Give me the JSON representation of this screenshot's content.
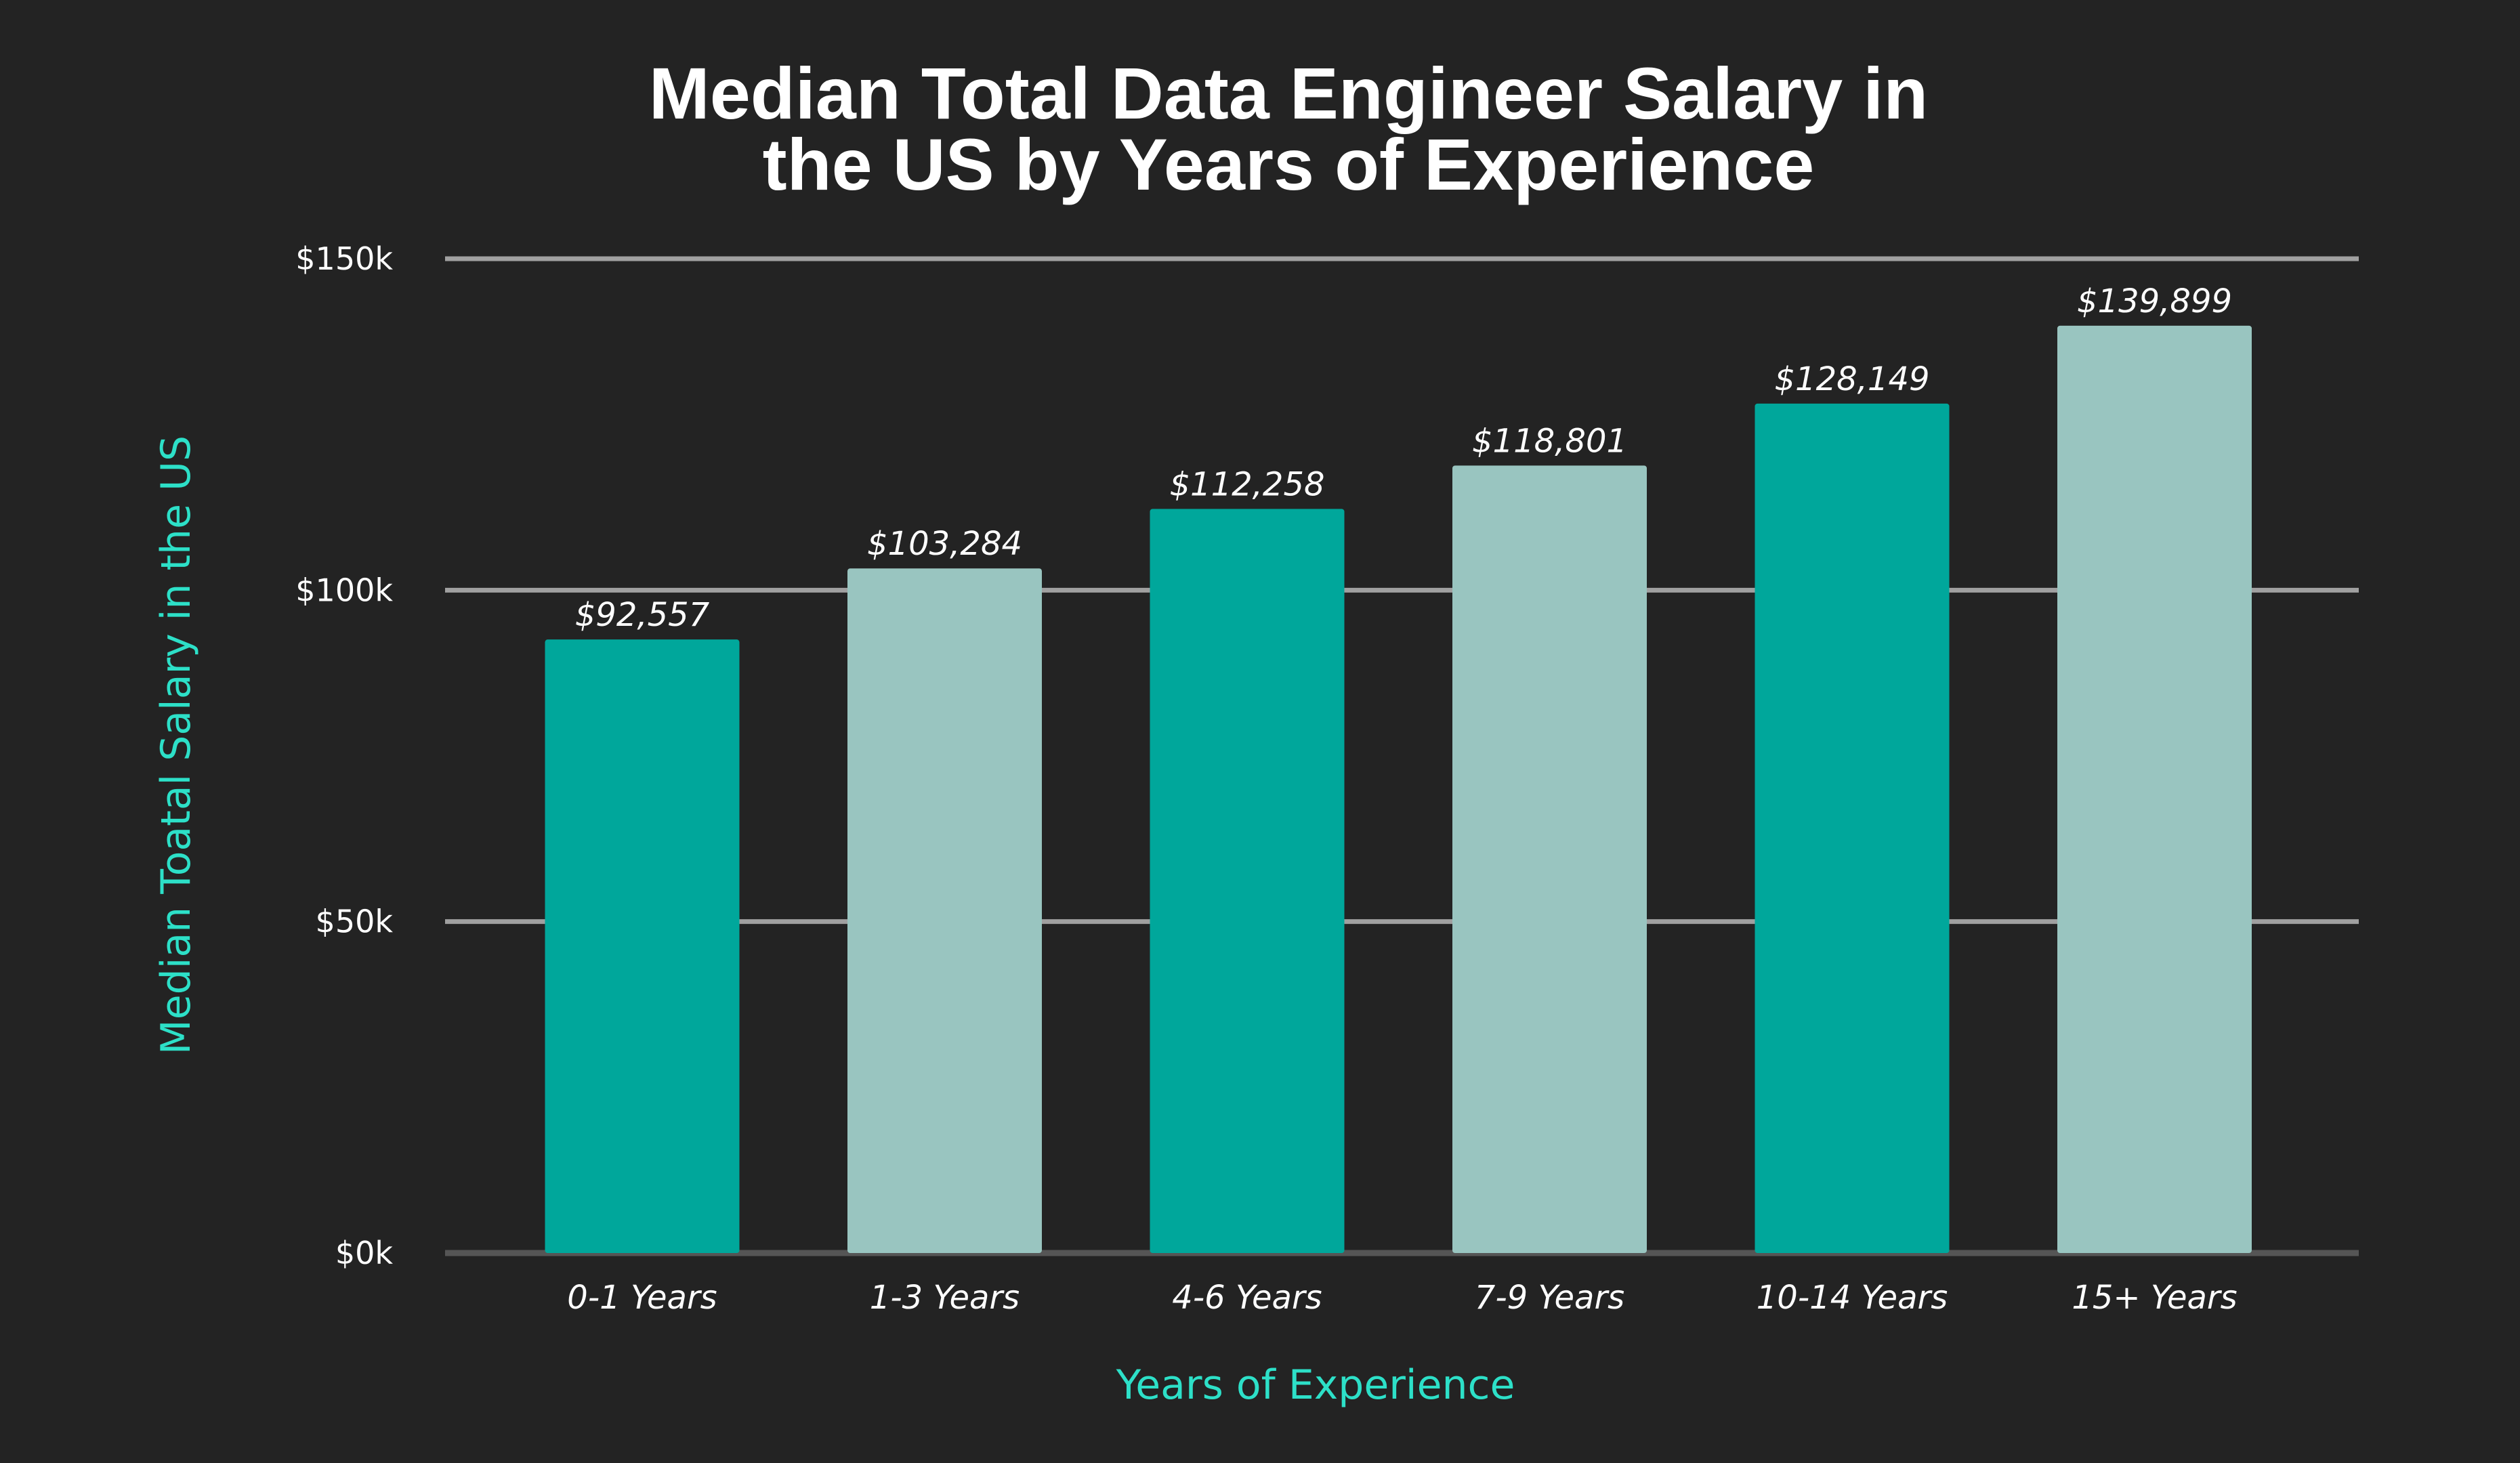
{
  "chart_data": {
    "type": "bar",
    "title_lines": [
      "Median Total Data Engineer Salary in",
      "the US by Years of Experience"
    ],
    "xlabel": "Years of Experience",
    "ylabel": "Median Toatal Salary in the US",
    "categories": [
      "0-1 Years",
      "1-3 Years",
      "4-6 Years",
      "7-9 Years",
      "10-14 Years",
      "15+ Years"
    ],
    "values": [
      92557,
      103284,
      112258,
      118801,
      128149,
      139899
    ],
    "value_labels": [
      "$92,557",
      "$103,284",
      "$112,258",
      "$118,801",
      "$128,149",
      "$139,899"
    ],
    "ylim": [
      0,
      150000
    ],
    "yticks": [
      0,
      50000,
      100000,
      150000
    ],
    "ytick_labels": [
      "$0k",
      "$50k",
      "$100k",
      "$150k"
    ],
    "grid": true,
    "legend": "none"
  },
  "colors": {
    "background": "#232323",
    "bar_dark": "#00a79b",
    "bar_light": "#99c5c0",
    "gridline": "#a0a0a0",
    "baseline": "#555555",
    "axis_title": "#2de0c8",
    "text": "#ffffff"
  }
}
